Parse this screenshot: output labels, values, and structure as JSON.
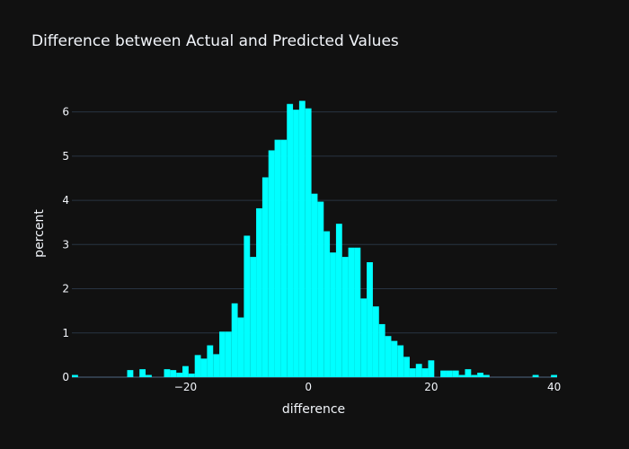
{
  "chart_data": {
    "type": "histogram",
    "title": "Difference between Actual and Predicted Values",
    "xlabel": "difference",
    "ylabel": "percent",
    "xlim": [
      -38.5,
      40.5
    ],
    "ylim": [
      0,
      6.5
    ],
    "bin_width": 1,
    "bar_color": "#00ffff",
    "background": "#111111",
    "grid_color": "#283442",
    "text_color": "#f2f5fa",
    "x_ticks": [
      -20,
      0,
      20,
      40
    ],
    "x_tick_labels": [
      "−20",
      "0",
      "20",
      "40"
    ],
    "y_ticks": [
      0,
      1,
      2,
      3,
      4,
      5,
      6
    ],
    "y_tick_labels": [
      "0",
      "1",
      "2",
      "3",
      "4",
      "5",
      "6"
    ],
    "bins": [
      {
        "x": -38,
        "v": 0.05
      },
      {
        "x": -29,
        "v": 0.16
      },
      {
        "x": -27,
        "v": 0.18
      },
      {
        "x": -26,
        "v": 0.05
      },
      {
        "x": -23,
        "v": 0.18
      },
      {
        "x": -22,
        "v": 0.16
      },
      {
        "x": -21,
        "v": 0.1
      },
      {
        "x": -20,
        "v": 0.25
      },
      {
        "x": -19,
        "v": 0.08
      },
      {
        "x": -18,
        "v": 0.5
      },
      {
        "x": -17,
        "v": 0.42
      },
      {
        "x": -16,
        "v": 0.72
      },
      {
        "x": -15,
        "v": 0.52
      },
      {
        "x": -14,
        "v": 1.03
      },
      {
        "x": -13,
        "v": 1.03
      },
      {
        "x": -12,
        "v": 1.67
      },
      {
        "x": -11,
        "v": 1.35
      },
      {
        "x": -10,
        "v": 3.2
      },
      {
        "x": -9,
        "v": 2.72
      },
      {
        "x": -8,
        "v": 3.82
      },
      {
        "x": -7,
        "v": 4.52
      },
      {
        "x": -6,
        "v": 5.13
      },
      {
        "x": -5,
        "v": 5.37
      },
      {
        "x": -4,
        "v": 5.37
      },
      {
        "x": -3,
        "v": 6.18
      },
      {
        "x": -2,
        "v": 6.05
      },
      {
        "x": -1,
        "v": 6.25
      },
      {
        "x": 0,
        "v": 6.08
      },
      {
        "x": 1,
        "v": 4.15
      },
      {
        "x": 2,
        "v": 3.97
      },
      {
        "x": 3,
        "v": 3.3
      },
      {
        "x": 4,
        "v": 2.82
      },
      {
        "x": 5,
        "v": 3.47
      },
      {
        "x": 6,
        "v": 2.72
      },
      {
        "x": 7,
        "v": 2.93
      },
      {
        "x": 8,
        "v": 2.93
      },
      {
        "x": 9,
        "v": 1.78
      },
      {
        "x": 10,
        "v": 2.6
      },
      {
        "x": 11,
        "v": 1.6
      },
      {
        "x": 12,
        "v": 1.2
      },
      {
        "x": 13,
        "v": 0.93
      },
      {
        "x": 14,
        "v": 0.82
      },
      {
        "x": 15,
        "v": 0.72
      },
      {
        "x": 16,
        "v": 0.46
      },
      {
        "x": 17,
        "v": 0.2
      },
      {
        "x": 18,
        "v": 0.3
      },
      {
        "x": 19,
        "v": 0.2
      },
      {
        "x": 20,
        "v": 0.38
      },
      {
        "x": 22,
        "v": 0.15
      },
      {
        "x": 23,
        "v": 0.15
      },
      {
        "x": 24,
        "v": 0.15
      },
      {
        "x": 25,
        "v": 0.05
      },
      {
        "x": 26,
        "v": 0.18
      },
      {
        "x": 27,
        "v": 0.05
      },
      {
        "x": 28,
        "v": 0.1
      },
      {
        "x": 29,
        "v": 0.05
      },
      {
        "x": 37,
        "v": 0.05
      },
      {
        "x": 40,
        "v": 0.05
      }
    ]
  }
}
